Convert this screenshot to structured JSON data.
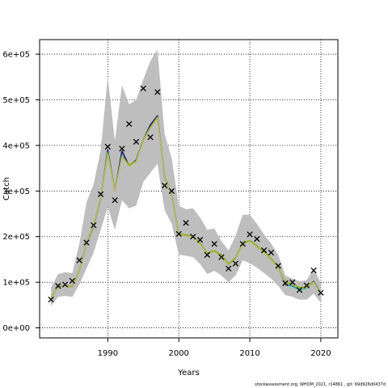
{
  "chart_data": {
    "type": "line",
    "title": "",
    "xlabel": "Years",
    "ylabel": "Catch",
    "xlim": [
      1980.4,
      2022.4
    ],
    "ylim": [
      -22000,
      632000
    ],
    "x_ticks": [
      1990,
      2000,
      2010,
      2020
    ],
    "x_tick_labels": [
      "1990",
      "2000",
      "2010",
      "2020"
    ],
    "y_ticks": [
      0,
      100000,
      200000,
      300000,
      400000,
      500000,
      600000
    ],
    "y_tick_labels": [
      "0e+00",
      "1e+05",
      "2e+05",
      "3e+05",
      "4e+05",
      "5e+05",
      "6e+05"
    ],
    "grid": true,
    "years": [
      1982,
      1983,
      1984,
      1985,
      1986,
      1987,
      1988,
      1989,
      1990,
      1991,
      1992,
      1993,
      1994,
      1995,
      1996,
      1997,
      1998,
      1999,
      2000,
      2001,
      2002,
      2003,
      2004,
      2005,
      2006,
      2007,
      2008,
      2009,
      2010,
      2011,
      2012,
      2013,
      2014,
      2015,
      2016,
      2017,
      2018,
      2019,
      2020
    ],
    "series": [
      {
        "kind": "band",
        "color": "#bebebe",
        "lower": [
          48000,
          68000,
          70000,
          68000,
          95000,
          130000,
          165000,
          215000,
          265000,
          215000,
          280000,
          262000,
          268000,
          320000,
          340000,
          360000,
          258000,
          228000,
          160000,
          158000,
          155000,
          140000,
          118000,
          125000,
          115000,
          100000,
          115000,
          148000,
          142000,
          132000,
          120000,
          108000,
          92000,
          72000,
          68000,
          62000,
          62000,
          75000,
          55000
        ],
        "upper": [
          88000,
          118000,
          122000,
          120000,
          185000,
          275000,
          315000,
          390000,
          550000,
          410000,
          532000,
          490000,
          500000,
          545000,
          585000,
          610000,
          425000,
          372000,
          268000,
          260000,
          262000,
          242000,
          215000,
          218000,
          190000,
          170000,
          202000,
          248000,
          248000,
          228000,
          205000,
          185000,
          160000,
          115000,
          108000,
          102000,
          104000,
          130000,
          98000
        ]
      },
      {
        "kind": "line",
        "color": "#191970",
        "values": [
          65000,
          90000,
          92000,
          90000,
          125000,
          185000,
          222000,
          282000,
          390000,
          300000,
          388000,
          355000,
          368000,
          412000,
          445000,
          465000,
          330000,
          290000,
          205000,
          202000,
          200000,
          185000,
          162000,
          168000,
          160000,
          138000,
          152000,
          185000,
          190000,
          178000,
          165000,
          150000,
          132000,
          95000,
          92000,
          85000,
          88000,
          102000,
          75000
        ]
      },
      {
        "kind": "line",
        "color": "#20b2aa",
        "values": [
          65000,
          90000,
          92000,
          90000,
          125000,
          186000,
          224000,
          283000,
          385000,
          302000,
          378000,
          356000,
          366000,
          412000,
          440000,
          462000,
          331000,
          290000,
          206000,
          203000,
          200000,
          184000,
          163000,
          168000,
          159000,
          139000,
          153000,
          185000,
          190000,
          179000,
          164000,
          151000,
          131000,
          96000,
          91000,
          83000,
          87000,
          100000,
          75000
        ]
      },
      {
        "kind": "line",
        "color": "#7cae00",
        "values": [
          66000,
          90000,
          92000,
          90000,
          126000,
          187000,
          225000,
          284000,
          384000,
          302000,
          376000,
          357000,
          366000,
          412000,
          440000,
          462000,
          332000,
          290000,
          206000,
          204000,
          201000,
          185000,
          164000,
          169000,
          160000,
          140000,
          154000,
          186000,
          191000,
          180000,
          166000,
          152000,
          133000,
          100000,
          97000,
          88000,
          90000,
          101000,
          75000
        ]
      },
      {
        "kind": "line",
        "color": "#bdb76b",
        "values": [
          65000,
          89000,
          91000,
          89000,
          124000,
          186000,
          223000,
          282000,
          380000,
          300000,
          375000,
          354000,
          364000,
          410000,
          438000,
          460000,
          330000,
          288000,
          204000,
          202000,
          199000,
          183000,
          162000,
          167000,
          158000,
          138000,
          152000,
          184000,
          189000,
          178000,
          164000,
          150000,
          131000,
          98000,
          95000,
          86000,
          88000,
          100000,
          74000
        ]
      },
      {
        "kind": "points",
        "marker": "x",
        "color": "#000000",
        "values": [
          62000,
          92000,
          95000,
          103000,
          148000,
          187000,
          225000,
          293000,
          397000,
          280000,
          393000,
          447000,
          408000,
          525000,
          418000,
          517000,
          312000,
          300000,
          206000,
          230000,
          200000,
          193000,
          160000,
          184000,
          155000,
          130000,
          141000,
          184000,
          205000,
          195000,
          170000,
          165000,
          136000,
          98000,
          100000,
          83000,
          93000,
          126000,
          77000
        ]
      }
    ]
  },
  "footer": "stockassessment.org, WHOM_2021, r14861 , git: 69d926d0437d"
}
